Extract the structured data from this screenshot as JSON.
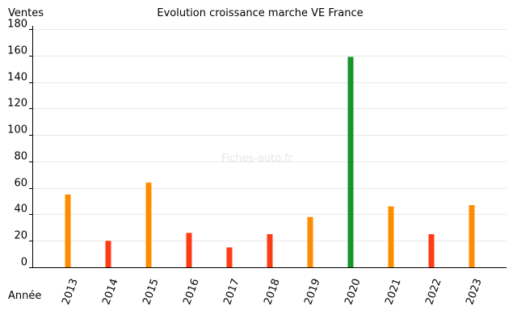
{
  "chart_data": {
    "type": "bar",
    "title": "Evolution croissance marche VE France",
    "ylabel": "Ventes",
    "xlabel": "Année",
    "watermark": "Fiches-auto.fr",
    "categories": [
      "2013",
      "2014",
      "2015",
      "2016",
      "2017",
      "2018",
      "2019",
      "2020",
      "2021",
      "2022",
      "2023"
    ],
    "values": [
      55,
      20,
      64,
      26,
      15,
      25,
      38,
      159,
      46,
      25,
      47
    ],
    "bar_colors": [
      "#ff8c00",
      "#ff3c14",
      "#ff8c00",
      "#ff3c14",
      "#ff3c14",
      "#ff3c14",
      "#ff8c00",
      "#149628",
      "#ff8c00",
      "#ff3c14",
      "#ff8c00"
    ],
    "ylim": [
      0,
      180
    ],
    "yticks": [
      0,
      20,
      40,
      60,
      80,
      100,
      120,
      140,
      160,
      180
    ],
    "grid": true,
    "legend": "none"
  }
}
